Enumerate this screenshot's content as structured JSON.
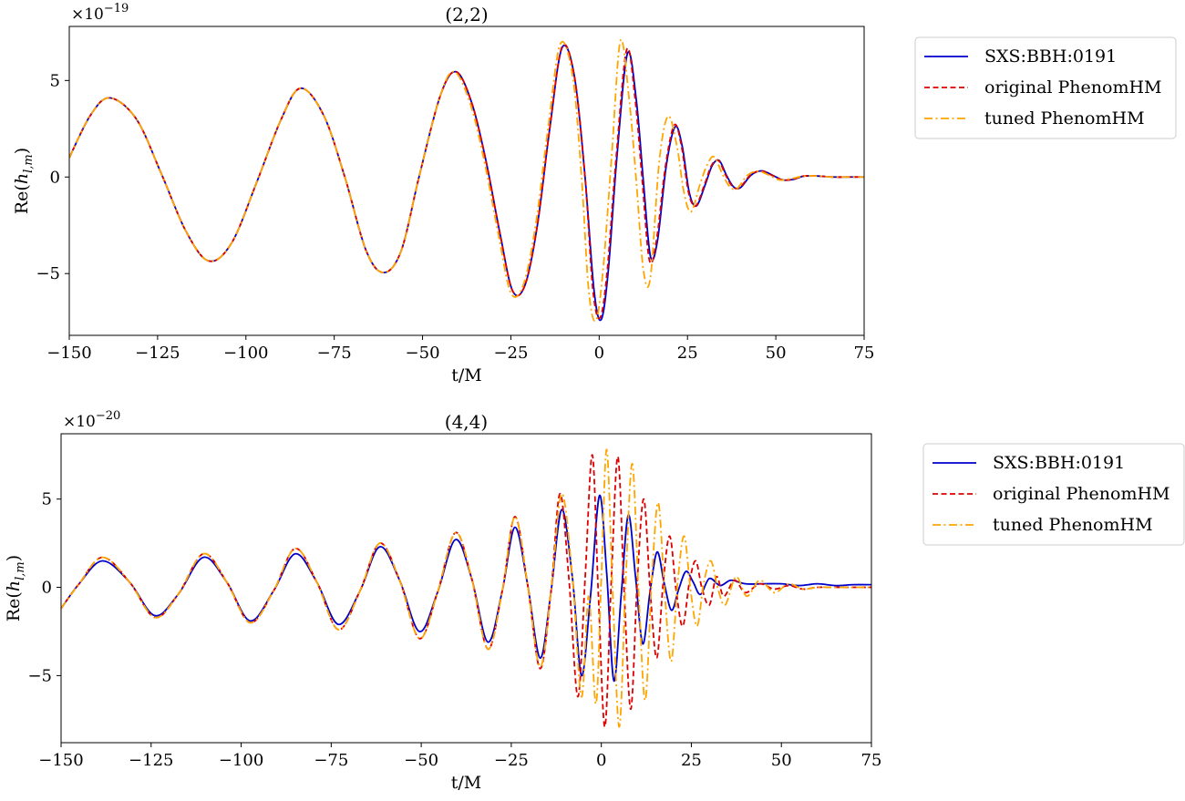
{
  "chart_data": [
    {
      "type": "line",
      "title": "(2,2)",
      "xlabel": "t/M",
      "ylabel": "Re(h_{l,m})",
      "ylabel_parts": {
        "main": "Re(",
        "sub_h": "h",
        "sub": "l,m",
        "close": ")"
      },
      "scale_label": {
        "base": "×10",
        "exp": "−19"
      },
      "xlim": [
        -150,
        75
      ],
      "ylim": [
        -8.2,
        7.8
      ],
      "xticks": [
        -150,
        -125,
        -100,
        -75,
        -50,
        -25,
        0,
        25,
        50,
        75
      ],
      "xtick_labels": [
        "−150",
        "−125",
        "−100",
        "−75",
        "−50",
        "−25",
        "0",
        "25",
        "50",
        "75"
      ],
      "yticks": [
        -5,
        0,
        5
      ],
      "ytick_labels": [
        "−5",
        "0",
        "5"
      ],
      "grid": false,
      "legend_placement": "outside-right",
      "series": [
        {
          "name": "SXS:BBH:0191",
          "color": "#0000cc",
          "dash": "solid",
          "x": [
            -150,
            -144,
            -138.5,
            -131,
            -124,
            -117,
            -110.5,
            -104,
            -97,
            -90,
            -84.5,
            -78,
            -72,
            -66,
            -61,
            -56,
            -51,
            -45,
            -40.5,
            -36,
            -32,
            -28,
            -24.5,
            -21,
            -17.5,
            -14,
            -10.5,
            -7,
            -4,
            -1.5,
            0.5,
            2.5,
            5,
            8,
            10.5,
            12.5,
            14.5,
            16.5,
            19,
            21.5,
            23.5,
            25.5,
            27.5,
            30,
            32,
            34,
            36,
            38,
            40,
            43,
            46,
            49,
            52,
            55,
            58,
            62,
            66,
            70,
            75
          ],
          "y": [
            1.0,
            3.2,
            4.1,
            3.0,
            0.2,
            -2.8,
            -4.35,
            -3.4,
            -0.3,
            3.0,
            4.6,
            3.2,
            0.0,
            -3.8,
            -4.95,
            -3.8,
            0.0,
            4.2,
            5.45,
            3.8,
            0.8,
            -3.0,
            -5.9,
            -5.6,
            -2.5,
            2.5,
            6.7,
            5.2,
            0.0,
            -5.8,
            -7.4,
            -5.0,
            1.0,
            6.4,
            4.0,
            -0.2,
            -4.1,
            -3.3,
            0.6,
            2.6,
            1.6,
            -0.8,
            -1.5,
            -0.4,
            0.6,
            0.85,
            0.1,
            -0.5,
            -0.55,
            0.1,
            0.32,
            0.1,
            -0.15,
            -0.12,
            0.05,
            0.05,
            0.0,
            0.0,
            0.0
          ]
        },
        {
          "name": "original PhenomHM",
          "color": "#dd0000",
          "dash": "dashed",
          "x": [
            -150,
            -144,
            -138.5,
            -131,
            -124,
            -117,
            -110.5,
            -104,
            -97,
            -90,
            -84.5,
            -78,
            -72,
            -66,
            -61,
            -56,
            -51,
            -45,
            -40.5,
            -36,
            -32,
            -28,
            -24.5,
            -21,
            -17.5,
            -14,
            -10.5,
            -7,
            -4,
            -1.8,
            0.2,
            2.2,
            4.8,
            7.8,
            10.2,
            12.2,
            14.2,
            16.2,
            18.8,
            21.3,
            23.3,
            25.3,
            27.3,
            29.8,
            31.8,
            33.8,
            35.8,
            37.8,
            39.8,
            42.8,
            45.8,
            48.8,
            51.8,
            54.8,
            58,
            62,
            66,
            70,
            75
          ],
          "y": [
            1.0,
            3.2,
            4.1,
            3.0,
            0.2,
            -2.8,
            -4.35,
            -3.4,
            -0.3,
            3.0,
            4.6,
            3.2,
            0.0,
            -3.8,
            -4.95,
            -3.8,
            0.0,
            4.2,
            5.45,
            3.8,
            0.8,
            -3.0,
            -5.9,
            -5.6,
            -2.5,
            2.5,
            6.75,
            5.2,
            0.0,
            -5.8,
            -7.3,
            -5.0,
            1.0,
            6.6,
            4.0,
            -0.2,
            -4.3,
            -3.3,
            0.6,
            2.7,
            1.6,
            -0.8,
            -1.5,
            -0.4,
            0.6,
            0.85,
            0.1,
            -0.5,
            -0.55,
            0.1,
            0.32,
            0.1,
            -0.15,
            -0.12,
            0.05,
            0.05,
            0.0,
            0.0,
            0.0
          ]
        },
        {
          "name": "tuned PhenomHM",
          "color": "#ffa500",
          "dash": "dashdot",
          "x": [
            -150,
            -144,
            -138.5,
            -131,
            -124,
            -117,
            -110.5,
            -104,
            -97,
            -90,
            -84.5,
            -78,
            -72,
            -66,
            -61,
            -56,
            -51,
            -45,
            -41,
            -36.5,
            -32.5,
            -28.5,
            -25,
            -21.5,
            -18,
            -14.5,
            -11,
            -7.5,
            -5,
            -3,
            -1,
            1,
            3.5,
            6,
            8.5,
            10.5,
            12.5,
            14.5,
            17,
            19.5,
            22,
            24,
            26,
            28.5,
            30.5,
            32.5,
            35,
            37,
            39,
            42,
            45,
            48,
            51,
            54,
            58,
            62,
            66,
            70,
            75
          ],
          "y": [
            1.0,
            3.2,
            4.1,
            3.0,
            0.2,
            -2.8,
            -4.35,
            -3.4,
            -0.3,
            3.0,
            4.6,
            3.2,
            0.0,
            -3.8,
            -4.95,
            -3.8,
            0.0,
            4.2,
            5.45,
            3.8,
            0.8,
            -3.0,
            -6.0,
            -5.6,
            -2.5,
            2.5,
            6.9,
            5.2,
            0.0,
            -5.8,
            -7.45,
            -5.0,
            1.0,
            7.05,
            4.0,
            -0.2,
            -4.8,
            -5.2,
            0.8,
            3.15,
            1.6,
            -0.8,
            -1.8,
            -0.4,
            0.6,
            1.05,
            0.1,
            -0.5,
            -0.6,
            0.1,
            0.3,
            0.1,
            -0.15,
            -0.1,
            0.05,
            0.05,
            0.0,
            0.0,
            0.0
          ]
        }
      ]
    },
    {
      "type": "line",
      "title": "(4,4)",
      "xlabel": "t/M",
      "ylabel": "Re(h_{l,m})",
      "ylabel_parts": {
        "main": "Re(",
        "sub_h": "h",
        "sub": "l,m",
        "close": ")"
      },
      "scale_label": {
        "base": "×10",
        "exp": "−20"
      },
      "xlim": [
        -150,
        75
      ],
      "ylim": [
        -8.8,
        8.7
      ],
      "xticks": [
        -150,
        -125,
        -100,
        -75,
        -50,
        -25,
        0,
        25,
        50,
        75
      ],
      "xtick_labels": [
        "−150",
        "−125",
        "−100",
        "−75",
        "−50",
        "−25",
        "0",
        "25",
        "50",
        "75"
      ],
      "yticks": [
        -5,
        0,
        5
      ],
      "ytick_labels": [
        "−5",
        "0",
        "5"
      ],
      "grid": false,
      "legend_placement": "outside-right",
      "series": [
        {
          "name": "SXS:BBH:0191",
          "color": "#0000cc",
          "dash": "solid",
          "x": [
            -150,
            -145,
            -138.5,
            -131,
            -124,
            -117.5,
            -110.5,
            -104,
            -97.5,
            -91,
            -85,
            -79,
            -73,
            -67,
            -61.5,
            -56,
            -50.5,
            -45.5,
            -40.5,
            -36,
            -31.5,
            -27.5,
            -24,
            -20.5,
            -17,
            -14,
            -11,
            -8,
            -5.5,
            -3,
            -0.5,
            1.5,
            3.5,
            5.5,
            7.5,
            9.5,
            11.5,
            13.5,
            15.5,
            17.5,
            19.5,
            21.5,
            23.5,
            25.5,
            27.5,
            30,
            33,
            36,
            40,
            45,
            50,
            55,
            60,
            65,
            70,
            75
          ],
          "y": [
            -1.2,
            0.2,
            1.5,
            0.3,
            -1.6,
            -0.4,
            1.7,
            0.3,
            -1.9,
            -0.2,
            1.9,
            0.3,
            -2.1,
            -0.2,
            2.3,
            0.4,
            -2.5,
            -0.3,
            2.7,
            0.5,
            -3.1,
            -0.2,
            3.4,
            0.2,
            -4.0,
            -0.3,
            4.4,
            0.5,
            -5.0,
            -0.5,
            5.2,
            0.8,
            -5.3,
            -0.5,
            4.1,
            0.6,
            -3.2,
            -0.3,
            2.0,
            0.2,
            -1.3,
            -0.1,
            0.9,
            0.3,
            -0.4,
            0.5,
            0.1,
            0.4,
            0.2,
            0.2,
            0.2,
            0.1,
            0.2,
            0.1,
            0.15,
            0.15
          ]
        },
        {
          "name": "original PhenomHM",
          "color": "#dd0000",
          "dash": "dashed",
          "x": [
            -150,
            -145,
            -138.5,
            -131,
            -124,
            -117.5,
            -110.5,
            -104,
            -97.5,
            -91,
            -85,
            -79,
            -73,
            -67,
            -61.5,
            -56,
            -50.5,
            -45.5,
            -40.5,
            -36,
            -31.5,
            -27.5,
            -24,
            -20.5,
            -17,
            -14,
            -11.5,
            -9,
            -6.5,
            -4.5,
            -2.5,
            -0.8,
            1,
            2.8,
            4.6,
            6.4,
            8.2,
            10,
            11.8,
            13.6,
            15.4,
            17.2,
            19,
            20.8,
            22.6,
            24.4,
            26.2,
            28,
            30,
            32,
            34,
            37,
            40,
            44,
            48,
            52,
            56,
            60,
            66,
            72,
            75
          ],
          "y": [
            -1.2,
            0.2,
            1.7,
            0.3,
            -1.7,
            -0.4,
            1.9,
            0.3,
            -2.0,
            -0.2,
            2.2,
            0.3,
            -2.4,
            -0.2,
            2.5,
            0.4,
            -2.9,
            -0.3,
            3.1,
            0.5,
            -3.5,
            -0.2,
            4.0,
            0.2,
            -4.6,
            -0.3,
            5.3,
            0.5,
            -6.2,
            0.5,
            7.5,
            -0.5,
            -7.9,
            0.5,
            7.4,
            -0.5,
            -6.9,
            0.4,
            5.0,
            -0.3,
            -4.0,
            0.3,
            2.9,
            -0.2,
            -2.2,
            0.2,
            1.5,
            -0.1,
            -1.0,
            0.6,
            -0.5,
            0.4,
            -0.3,
            0.2,
            -0.1,
            0.1,
            -0.1,
            0.0,
            0.0,
            0.0,
            0.0
          ]
        },
        {
          "name": "tuned PhenomHM",
          "color": "#ffa500",
          "dash": "dashdot",
          "x": [
            -150,
            -145,
            -138.5,
            -131,
            -124,
            -117.5,
            -110.5,
            -104,
            -97.5,
            -91,
            -85,
            -79,
            -73,
            -67,
            -61.5,
            -56,
            -50.5,
            -45.5,
            -40.5,
            -36,
            -31.5,
            -27.5,
            -24,
            -20.5,
            -17,
            -14,
            -11,
            -8,
            -5.5,
            -3.5,
            -1.5,
            0,
            1.5,
            3.2,
            5,
            6.8,
            8.6,
            10.4,
            12.2,
            14,
            15.8,
            17.6,
            19.4,
            21.2,
            23,
            24.8,
            26.6,
            28.4,
            30.4,
            32.4,
            34.4,
            37.4,
            40.4,
            44,
            48,
            52,
            56,
            60,
            66,
            72,
            75
          ],
          "y": [
            -1.2,
            0.2,
            1.7,
            0.3,
            -1.7,
            -0.4,
            1.9,
            0.3,
            -2.0,
            -0.2,
            2.2,
            0.3,
            -2.4,
            -0.2,
            2.5,
            0.4,
            -2.9,
            -0.3,
            3.1,
            0.5,
            -3.5,
            -0.2,
            4.0,
            0.2,
            -4.5,
            -0.3,
            5.3,
            0.5,
            -6.2,
            -0.5,
            -6.6,
            0.5,
            7.8,
            -0.5,
            -7.9,
            0.5,
            7.0,
            -0.5,
            -6.4,
            0.4,
            4.8,
            -0.3,
            -4.2,
            0.3,
            2.9,
            -0.2,
            -2.2,
            0.2,
            1.5,
            -0.1,
            -1.0,
            0.6,
            -0.5,
            0.4,
            -0.3,
            0.2,
            -0.1,
            0.0,
            0.0,
            0.0,
            0.0
          ]
        }
      ]
    }
  ]
}
